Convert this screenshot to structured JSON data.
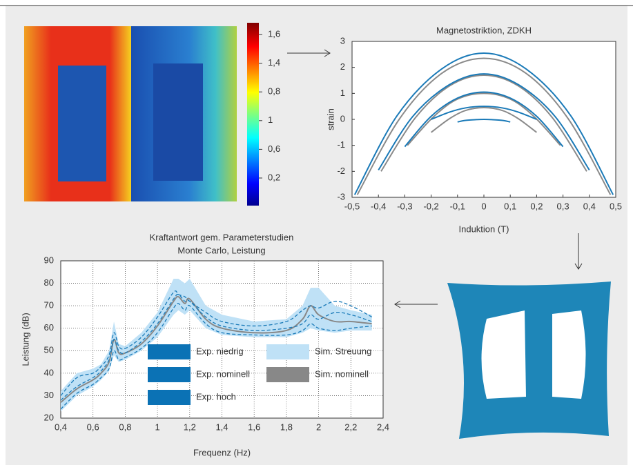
{
  "chart_data": [
    {
      "type": "line",
      "title": "Magnetostriktion, ZDKH",
      "xlabel": "Induktion (T)",
      "ylabel": "strain",
      "xlim": [
        -0.5,
        0.5
      ],
      "xticks": [
        {
          "value": -0.5,
          "label": "-0,5"
        },
        {
          "value": -0.4,
          "label": "-0,4"
        },
        {
          "value": -0.3,
          "label": "-0,3"
        },
        {
          "value": -0.2,
          "label": "-0,2"
        },
        {
          "value": -0.1,
          "label": "-0,1"
        },
        0,
        {
          "value": 0.1,
          "label": "0,1"
        },
        {
          "value": 0.2,
          "label": "0,2"
        },
        {
          "value": 0.3,
          "label": "0,3"
        },
        {
          "value": 0.4,
          "label": "0,4"
        },
        {
          "value": 0.5,
          "label": "0,5"
        }
      ],
      "ylim": [
        -3,
        3
      ],
      "yticks": [
        -3,
        -2,
        -1,
        0,
        1,
        2,
        3
      ],
      "grid": false,
      "series": [
        {
          "color": "#8a8a8a",
          "x": [
            -0.48,
            -0.32,
            -0.16,
            0,
            0.16,
            0.32,
            0.48
          ],
          "values": [
            -2.9,
            0.02,
            1.77,
            2.35,
            1.77,
            0.02,
            -2.9
          ]
        },
        {
          "color": "#8a8a8a",
          "x": [
            -0.39,
            -0.26,
            -0.13,
            0,
            0.13,
            0.26,
            0.39
          ],
          "values": [
            -2,
            0.06,
            1.29,
            1.7,
            1.29,
            0.06,
            -2
          ]
        },
        {
          "color": "#8a8a8a",
          "x": [
            -0.29,
            -0.19,
            -0.1,
            0,
            0.1,
            0.19,
            0.29
          ],
          "values": [
            -1,
            0.11,
            0.78,
            1,
            0.78,
            0.11,
            -1
          ]
        },
        {
          "color": "#8a8a8a",
          "x": [
            -0.2,
            -0.13,
            -0.07,
            0,
            0.07,
            0.13,
            0.2
          ],
          "values": [
            -0.5,
            0.03,
            0.34,
            0.45,
            0.34,
            0.03,
            -0.5
          ]
        },
        {
          "color": "#1a7ab8",
          "x": [
            -0.49,
            -0.33,
            -0.16,
            0,
            0.16,
            0.33,
            0.49
          ],
          "values": [
            -2.9,
            0.13,
            1.94,
            2.55,
            1.94,
            0.13,
            -2.9
          ]
        },
        {
          "color": "#1a7ab8",
          "x": [
            -0.4,
            -0.27,
            -0.13,
            0,
            0.13,
            0.27,
            0.4
          ],
          "values": [
            -1.95,
            0.11,
            1.34,
            1.75,
            1.34,
            0.11,
            -1.95
          ]
        },
        {
          "color": "#1a7ab8",
          "x": [
            -0.3,
            -0.2,
            -0.1,
            0,
            0.1,
            0.2,
            0.3
          ],
          "values": [
            -1.05,
            0.12,
            0.82,
            1.05,
            0.82,
            0.12,
            -1.05
          ]
        },
        {
          "color": "#1a7ab8",
          "x": [
            -0.2,
            -0.13,
            -0.07,
            0,
            0.07,
            0.13,
            0.2
          ],
          "values": [
            0,
            0.28,
            0.44,
            0.5,
            0.44,
            0.28,
            0
          ]
        },
        {
          "color": "#1a7ab8",
          "x": [
            -0.1,
            -0.07,
            -0.03,
            0,
            0.03,
            0.07,
            0.1
          ],
          "values": [
            -0.1,
            -0.04,
            -0.01,
            0,
            -0.01,
            -0.04,
            -0.1
          ]
        }
      ]
    },
    {
      "type": "line",
      "title": "Kraftantwort gem. Parameterstudien",
      "subtitle": "Monte Carlo, Leistung",
      "xlabel": "Frequenz (Hz)",
      "ylabel": "Leistung (dB)",
      "xlim": [
        0.4,
        2.4
      ],
      "xticks": [
        {
          "value": 0.4,
          "label": "0,4"
        },
        {
          "value": 0.6,
          "label": "0,6"
        },
        {
          "value": 0.8,
          "label": "0,8"
        },
        1,
        {
          "value": 1.2,
          "label": "1,2"
        },
        {
          "value": 1.4,
          "label": "1,4"
        },
        {
          "value": 1.6,
          "label": "1,6"
        },
        {
          "value": 1.8,
          "label": "1,8"
        },
        2,
        {
          "value": 2.2,
          "label": "2,2"
        },
        {
          "value": 2.4,
          "label": "2,4"
        }
      ],
      "ylim": [
        20,
        90
      ],
      "yticks": [
        20,
        30,
        40,
        50,
        60,
        70,
        80,
        90
      ],
      "grid": true,
      "x": [
        0.4,
        0.5,
        0.6,
        0.65,
        0.7,
        0.73,
        0.76,
        0.8,
        0.9,
        1.0,
        1.1,
        1.13,
        1.17,
        1.2,
        1.3,
        1.4,
        1.6,
        1.8,
        1.9,
        1.95,
        2.0,
        2.1,
        2.2,
        2.33
      ],
      "series": [
        {
          "name": "Sim. Streuung",
          "color": "#bfe1f6",
          "kind": "band",
          "low": [
            23,
            30,
            34,
            37,
            41,
            48,
            45,
            46,
            50,
            56,
            66,
            68,
            66,
            68,
            60,
            57,
            56,
            56,
            58,
            60,
            59,
            58,
            59,
            59
          ],
          "high": [
            32,
            40,
            42,
            44,
            50,
            63,
            53,
            52,
            58,
            67,
            82,
            82,
            80,
            82,
            70,
            66,
            63,
            64,
            70,
            78,
            78,
            70,
            68,
            66
          ]
        },
        {
          "name": "Sim. nominell",
          "color": "#888888",
          "linestyle": "solid",
          "values": [
            27,
            33,
            37,
            40,
            45,
            55,
            49,
            49,
            53,
            61,
            72,
            74,
            71,
            73,
            64,
            60,
            58,
            59,
            64,
            70,
            66,
            63,
            63,
            62
          ]
        },
        {
          "name": "Exp. niedrig",
          "color": "#1a7ab8",
          "linestyle": "dashed",
          "values": [
            24,
            31,
            35,
            38,
            42,
            50,
            46,
            47,
            51,
            58,
            69,
            71,
            68,
            70,
            62,
            58,
            57,
            57,
            59,
            62,
            60,
            59,
            60,
            61
          ]
        },
        {
          "name": "Exp. nominell",
          "color": "#1a7ab8",
          "linestyle": "dashed",
          "values": [
            28,
            34,
            38,
            41,
            46,
            55,
            50,
            49,
            54,
            62,
            73,
            75,
            72,
            72,
            65,
            61,
            59,
            60,
            62,
            66,
            64,
            67,
            66,
            63
          ]
        },
        {
          "name": "Exp. hoch",
          "color": "#1a7ab8",
          "linestyle": "dashed",
          "values": [
            30,
            38,
            40,
            43,
            48,
            58,
            52,
            51,
            56,
            65,
            76,
            75,
            74,
            72,
            67,
            63,
            61,
            63,
            68,
            70,
            69,
            72,
            70,
            65
          ]
        }
      ]
    },
    {
      "type": "colorbar",
      "labels": [
        "1,6",
        "1,4",
        "0,8",
        "1",
        "0,6",
        "0,2"
      ]
    }
  ]
}
